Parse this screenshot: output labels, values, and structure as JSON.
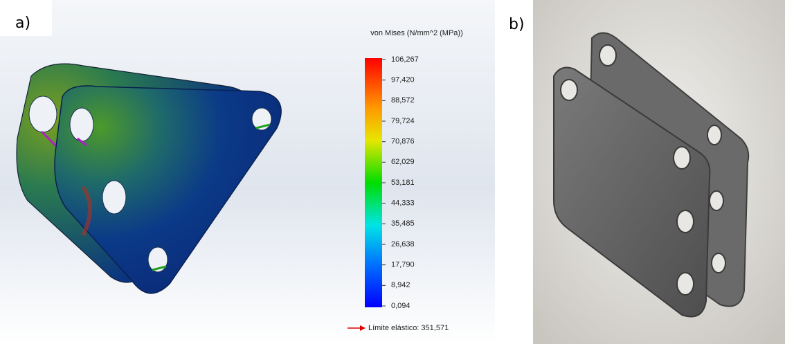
{
  "panel_a": {
    "label": "a)",
    "legend": {
      "title": "von Mises (N/mm^2 (MPa))",
      "range": [
        0.094,
        106.267
      ],
      "ticks": [
        {
          "value": 106.267,
          "label": "106,267"
        },
        {
          "value": 97.42,
          "label": "97,420"
        },
        {
          "value": 88.572,
          "label": "88,572"
        },
        {
          "value": 79.724,
          "label": "79,724"
        },
        {
          "value": 70.876,
          "label": "70,876"
        },
        {
          "value": 62.029,
          "label": "62,029"
        },
        {
          "value": 53.181,
          "label": "53,181"
        },
        {
          "value": 44.333,
          "label": "44,333"
        },
        {
          "value": 35.485,
          "label": "35,485"
        },
        {
          "value": 26.638,
          "label": "26,638"
        },
        {
          "value": 17.79,
          "label": "17,790"
        },
        {
          "value": 8.942,
          "label": "8,942"
        },
        {
          "value": 0.094,
          "label": "0,094"
        }
      ],
      "yield": "Límite elástico: 351,571"
    }
  },
  "panel_b": {
    "label": "b)"
  }
}
